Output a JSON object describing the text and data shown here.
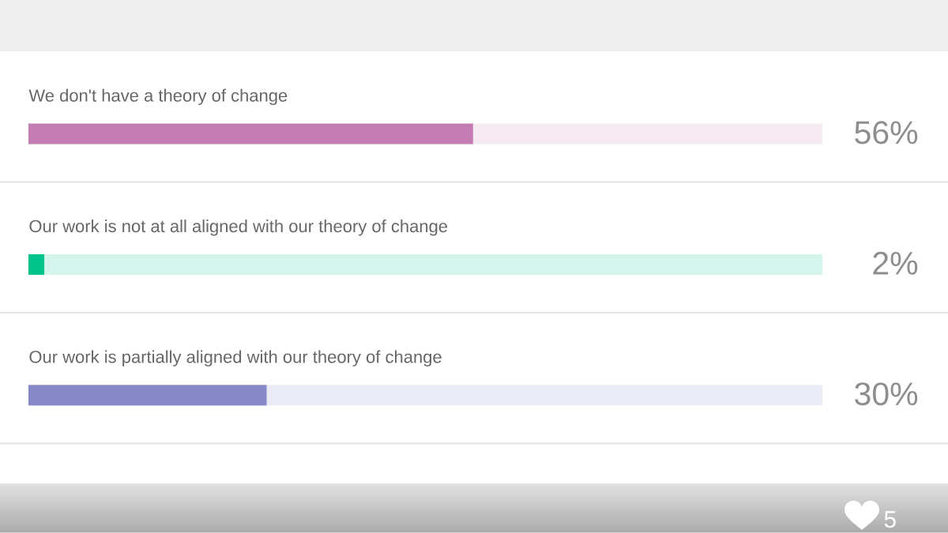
{
  "chart_data": {
    "type": "bar",
    "orientation": "horizontal",
    "categories": [
      "We don't have a theory of change",
      "Our work is not at all aligned with our theory of change",
      "Our work is partially aligned with our theory of change"
    ],
    "values": [
      56,
      2,
      30
    ],
    "value_labels": [
      "56%",
      "2%",
      "30%"
    ],
    "colors": [
      "#c47db3",
      "#00c389",
      "#8789c6"
    ],
    "xlim": [
      0,
      100
    ],
    "tick_labels": "y",
    "annotations": [
      "5"
    ]
  }
}
